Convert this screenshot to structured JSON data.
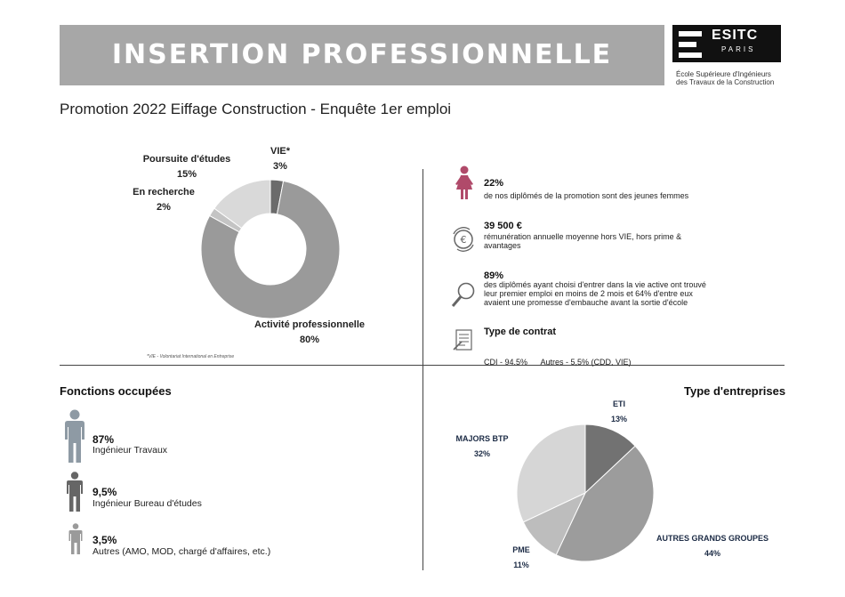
{
  "header": {
    "title": "INSERTION PROFESSIONNELLE",
    "logo_text": "ESITC",
    "logo_sub": "PARIS",
    "school_name_line1": "École Supérieure d'Ingénieurs",
    "school_name_line2": "des Travaux de la Construction"
  },
  "subtitle": "Promotion 2022 Eiffage Construction - Enquête 1er emploi",
  "situation": {
    "note": "*VIE - Volontariat International en Entreprise",
    "labels": [
      {
        "name": "VIE*",
        "value": "3%"
      },
      {
        "name": "Poursuite d'études",
        "value": "15%"
      },
      {
        "name": "En recherche",
        "value": "2%"
      },
      {
        "name": "Activité professionnelle",
        "value": "80%"
      }
    ]
  },
  "stats": [
    {
      "value": "22%",
      "desc": [
        "de nos diplômés de la promotion sont des jeunes femmes"
      ],
      "icon": "woman-icon"
    },
    {
      "value": "39 500 €",
      "desc": [
        "rémunération annuelle moyenne hors VIE, hors prime &",
        "avantages"
      ],
      "icon": "euro-icon"
    },
    {
      "value": "89%",
      "desc": [
        "des diplômés ayant choisi d'entrer dans la vie active ont trouvé",
        "leur premier emploi en moins de 2 mois et 64% d'entre eux",
        "avaient une promesse d'embauche avant la sortie d'école"
      ],
      "icon": "magnifier-icon"
    },
    {
      "value": "Type de contrat",
      "desc": [
        "CDI - 94.5%      Autres - 5,5% (CDD, VIE)"
      ],
      "icon": "contract-icon"
    }
  ],
  "fonctions": {
    "title": "Fonctions occupées",
    "items": [
      {
        "pct": "87%",
        "label": "Ingénieur Travaux"
      },
      {
        "pct": "9,5%",
        "label": "Ingénieur Bureau d'études"
      },
      {
        "pct": "3,5%",
        "label": "Autres (AMO, MOD, chargé d'affaires, etc.)"
      }
    ]
  },
  "entreprises": {
    "title": "Type d'entreprises",
    "labels": [
      {
        "name": "ETI",
        "value": "13%"
      },
      {
        "name": "MAJORS BTP",
        "value": "32%"
      },
      {
        "name": "AUTRES GRANDS GROUPES",
        "value": "44%"
      },
      {
        "name": "PME",
        "value": "11%"
      }
    ]
  },
  "chart_data": [
    {
      "type": "pie",
      "variant": "donut",
      "categories": [
        "VIE*",
        "Activité professionnelle",
        "En recherche",
        "Poursuite d'études"
      ],
      "values": [
        3,
        80,
        2,
        15
      ],
      "colors": [
        "#6b6b6b",
        "#9a9a9a",
        "#c4c4c4",
        "#d9d9d9"
      ]
    },
    {
      "type": "pie",
      "categories": [
        "ETI",
        "AUTRES GRANDS GROUPES",
        "PME",
        "MAJORS BTP"
      ],
      "values": [
        13,
        44,
        11,
        32
      ],
      "colors": [
        "#727272",
        "#9c9c9c",
        "#bdbdbd",
        "#d6d6d6"
      ]
    }
  ]
}
